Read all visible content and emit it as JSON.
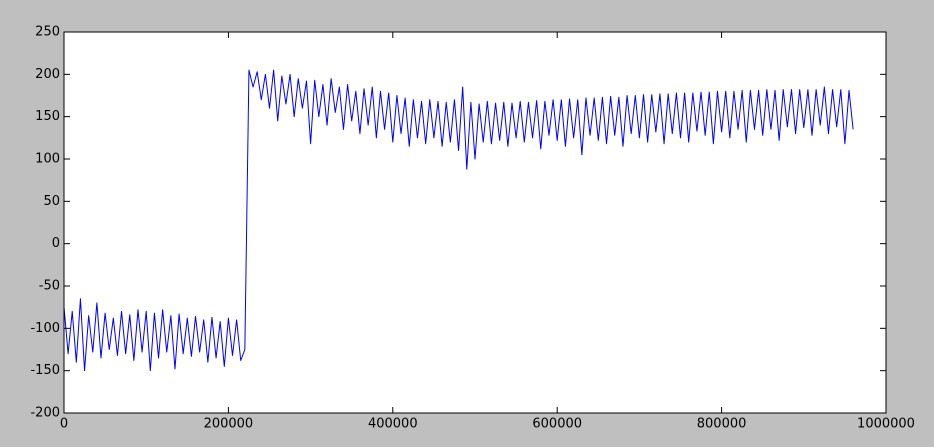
{
  "chart_data": {
    "type": "line",
    "color": "#0000ff",
    "xlim": [
      0,
      1000000
    ],
    "xticks": [
      0,
      200000,
      400000,
      600000,
      800000,
      1000000
    ],
    "ylim": [
      -200,
      250
    ],
    "yticks": [
      -200,
      -150,
      -100,
      -50,
      0,
      50,
      100,
      150,
      200,
      250
    ],
    "x": [
      0,
      5000,
      10000,
      15000,
      20000,
      25000,
      30000,
      35000,
      40000,
      45000,
      50000,
      55000,
      60000,
      65000,
      70000,
      75000,
      80000,
      85000,
      90000,
      95000,
      100000,
      105000,
      110000,
      115000,
      120000,
      125000,
      130000,
      135000,
      140000,
      145000,
      150000,
      155000,
      160000,
      165000,
      170000,
      175000,
      180000,
      185000,
      190000,
      195000,
      200000,
      205000,
      210000,
      215000,
      220000,
      225000,
      230000,
      235000,
      240000,
      245000,
      250000,
      255000,
      260000,
      265000,
      270000,
      275000,
      280000,
      285000,
      290000,
      295000,
      300000,
      305000,
      310000,
      315000,
      320000,
      325000,
      330000,
      335000,
      340000,
      345000,
      350000,
      355000,
      360000,
      365000,
      370000,
      375000,
      380000,
      385000,
      390000,
      395000,
      400000,
      405000,
      410000,
      415000,
      420000,
      425000,
      430000,
      435000,
      440000,
      445000,
      450000,
      455000,
      460000,
      465000,
      470000,
      475000,
      480000,
      485000,
      490000,
      495000,
      500000,
      505000,
      510000,
      515000,
      520000,
      525000,
      530000,
      535000,
      540000,
      545000,
      550000,
      555000,
      560000,
      565000,
      570000,
      575000,
      580000,
      585000,
      590000,
      595000,
      600000,
      605000,
      610000,
      615000,
      620000,
      625000,
      630000,
      635000,
      640000,
      645000,
      650000,
      655000,
      660000,
      665000,
      670000,
      675000,
      680000,
      685000,
      690000,
      695000,
      700000,
      705000,
      710000,
      715000,
      720000,
      725000,
      730000,
      735000,
      740000,
      745000,
      750000,
      755000,
      760000,
      765000,
      770000,
      775000,
      780000,
      785000,
      790000,
      795000,
      800000,
      805000,
      810000,
      815000,
      820000,
      825000,
      830000,
      835000,
      840000,
      845000,
      850000,
      855000,
      860000,
      865000,
      870000,
      875000,
      880000,
      885000,
      890000,
      895000,
      900000,
      905000,
      910000,
      915000,
      920000,
      925000,
      930000,
      935000,
      940000,
      945000,
      950000,
      955000,
      960000
    ],
    "values": [
      -75,
      -130,
      -80,
      -140,
      -65,
      -150,
      -85,
      -128,
      -70,
      -135,
      -82,
      -125,
      -88,
      -132,
      -80,
      -130,
      -84,
      -138,
      -78,
      -128,
      -80,
      -150,
      -82,
      -135,
      -78,
      -128,
      -85,
      -148,
      -83,
      -130,
      -88,
      -133,
      -86,
      -128,
      -90,
      -140,
      -87,
      -135,
      -92,
      -145,
      -88,
      -132,
      -90,
      -138,
      -125,
      205,
      185,
      203,
      170,
      200,
      160,
      205,
      145,
      198,
      165,
      200,
      150,
      195,
      160,
      192,
      118,
      193,
      150,
      188,
      140,
      195,
      155,
      185,
      135,
      188,
      145,
      180,
      130,
      183,
      140,
      185,
      125,
      180,
      135,
      178,
      120,
      175,
      130,
      172,
      115,
      170,
      125,
      168,
      118,
      170,
      125,
      168,
      115,
      167,
      120,
      170,
      110,
      185,
      88,
      167,
      100,
      165,
      120,
      168,
      118,
      166,
      122,
      167,
      115,
      166,
      125,
      168,
      120,
      167,
      125,
      169,
      112,
      168,
      128,
      170,
      122,
      170,
      115,
      171,
      125,
      170,
      105,
      172,
      128,
      172,
      122,
      173,
      118,
      174,
      128,
      173,
      115,
      175,
      130,
      175,
      125,
      176,
      120,
      176,
      132,
      177,
      118,
      177,
      130,
      178,
      125,
      178,
      120,
      178,
      133,
      179,
      128,
      179,
      118,
      180,
      132,
      180,
      125,
      180,
      135,
      181,
      120,
      181,
      135,
      181,
      128,
      182,
      135,
      181,
      122,
      182,
      138,
      182,
      130,
      182,
      137,
      182,
      128,
      182,
      140,
      185,
      130,
      182,
      138,
      182,
      118,
      181,
      135
    ]
  }
}
